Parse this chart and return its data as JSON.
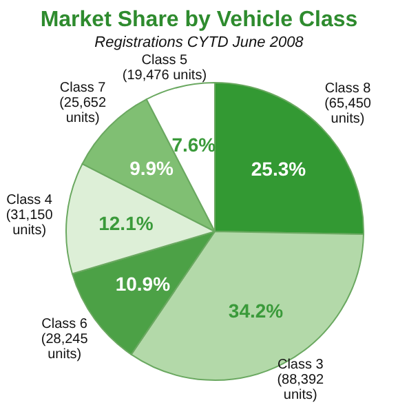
{
  "chart_data": {
    "type": "pie",
    "title": "Market Share by Vehicle Class",
    "subtitle": "Registrations CYTD June 2008",
    "categories": [
      "Class 8",
      "Class 3",
      "Class 6",
      "Class 4",
      "Class 7",
      "Class 5"
    ],
    "values": [
      25.3,
      34.2,
      10.9,
      12.1,
      9.9,
      7.6
    ],
    "value_labels": [
      "25.3%",
      "34.2%",
      "10.9%",
      "12.1%",
      "9.9%",
      "7.6%"
    ],
    "colors": [
      "#339933",
      "#b3d9a9",
      "#4ca146",
      "#ddefd7",
      "#80bf73",
      "#ffffff"
    ],
    "annotations": [
      {
        "text": "(65,450 units)",
        "x": "Class 8"
      },
      {
        "text": "(88,392 units)",
        "x": "Class 3"
      },
      {
        "text": "(28,245 units)",
        "x": "Class 6"
      },
      {
        "text": "(31,150 units)",
        "x": "Class 4"
      },
      {
        "text": "(25,652 units)",
        "x": "Class 7"
      },
      {
        "text": "(19,476 units)",
        "x": "Class 5"
      }
    ]
  }
}
